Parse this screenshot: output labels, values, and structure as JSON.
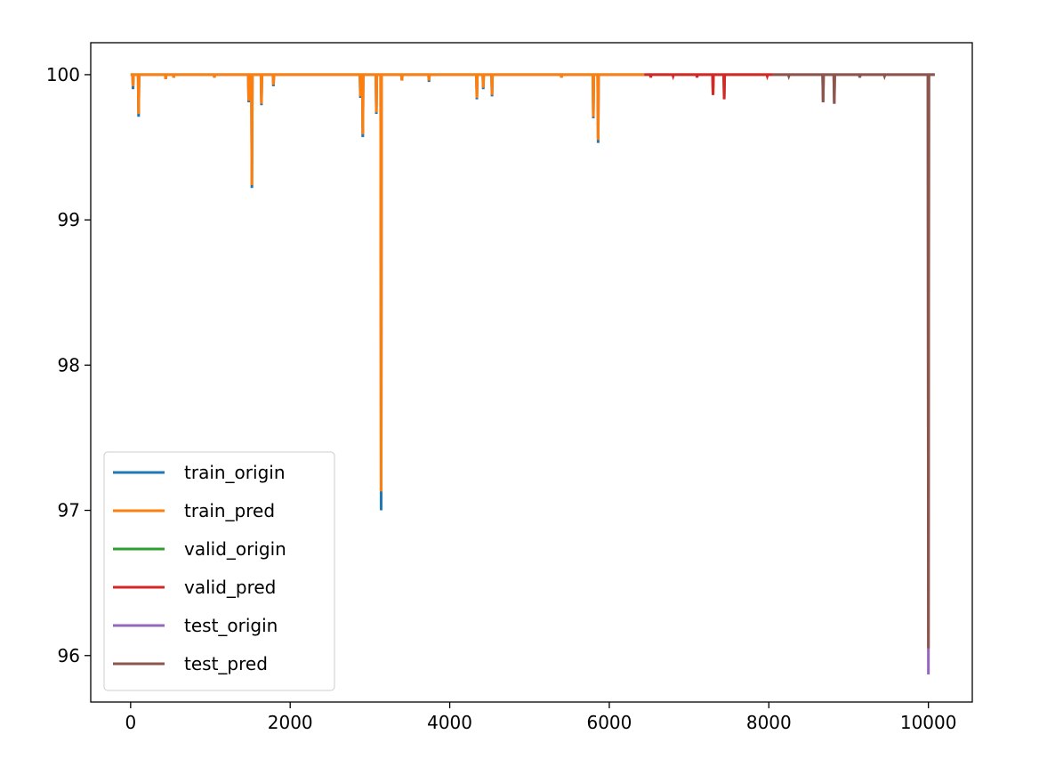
{
  "chart_data": {
    "type": "line",
    "title": "",
    "xlabel": "",
    "ylabel": "",
    "xlim": [
      -500,
      10550
    ],
    "ylim": [
      95.68,
      100.22
    ],
    "xticks": [
      0,
      2000,
      4000,
      6000,
      8000,
      10000
    ],
    "yticks": [
      96,
      97,
      98,
      99,
      100
    ],
    "grid": false,
    "legend": "lower-left",
    "series": [
      {
        "name": "train_origin",
        "color": "#1f77b4",
        "x_range": [
          0,
          6440
        ],
        "baseline": 100,
        "dips": [
          [
            30,
            99.9
          ],
          [
            100,
            99.71
          ],
          [
            440,
            99.97
          ],
          [
            540,
            99.98
          ],
          [
            1050,
            99.98
          ],
          [
            1480,
            99.81
          ],
          [
            1520,
            99.22
          ],
          [
            1640,
            99.79
          ],
          [
            1790,
            99.92
          ],
          [
            2880,
            99.84
          ],
          [
            2910,
            99.57
          ],
          [
            3080,
            99.73
          ],
          [
            3140,
            97.0
          ],
          [
            3400,
            99.96
          ],
          [
            3740,
            99.95
          ],
          [
            4340,
            99.83
          ],
          [
            4420,
            99.9
          ],
          [
            4530,
            99.85
          ],
          [
            5400,
            99.98
          ],
          [
            5800,
            99.7
          ],
          [
            5860,
            99.53
          ]
        ]
      },
      {
        "name": "train_pred",
        "color": "#ff7f0e",
        "x_range": [
          0,
          6440
        ],
        "baseline": 100,
        "dips": [
          [
            30,
            99.92
          ],
          [
            100,
            99.73
          ],
          [
            440,
            99.97
          ],
          [
            540,
            99.98
          ],
          [
            1050,
            99.98
          ],
          [
            1480,
            99.82
          ],
          [
            1520,
            99.24
          ],
          [
            1640,
            99.8
          ],
          [
            1790,
            99.93
          ],
          [
            2880,
            99.85
          ],
          [
            2910,
            99.59
          ],
          [
            3080,
            99.74
          ],
          [
            3140,
            97.13
          ],
          [
            3400,
            99.96
          ],
          [
            3740,
            99.96
          ],
          [
            4340,
            99.84
          ],
          [
            4420,
            99.91
          ],
          [
            4530,
            99.86
          ],
          [
            5400,
            99.98
          ],
          [
            5800,
            99.71
          ],
          [
            5860,
            99.55
          ]
        ]
      },
      {
        "name": "valid_origin",
        "color": "#2ca02c",
        "x_range": [
          6440,
          8050
        ],
        "baseline": 100,
        "dips": [
          [
            7300,
            99.86
          ],
          [
            7440,
            99.84
          ]
        ]
      },
      {
        "name": "valid_pred",
        "color": "#d62728",
        "x_range": [
          6440,
          8050
        ],
        "baseline": 100,
        "dips": [
          [
            6520,
            99.98
          ],
          [
            6800,
            99.99
          ],
          [
            7100,
            99.98
          ],
          [
            7300,
            99.86
          ],
          [
            7440,
            99.83
          ],
          [
            7980,
            99.99
          ]
        ]
      },
      {
        "name": "test_origin",
        "color": "#9467bd",
        "x_range": [
          8050,
          10080
        ],
        "baseline": 100,
        "dips": [
          [
            8680,
            99.81
          ],
          [
            8820,
            99.8
          ],
          [
            9140,
            99.98
          ],
          [
            10000,
            95.87
          ]
        ]
      },
      {
        "name": "test_pred",
        "color": "#8c564b",
        "x_range": [
          8050,
          10080
        ],
        "baseline": 100,
        "dips": [
          [
            8250,
            99.99
          ],
          [
            8680,
            99.81
          ],
          [
            8820,
            99.8
          ],
          [
            9140,
            99.98
          ],
          [
            9450,
            99.99
          ],
          [
            10000,
            96.05
          ]
        ]
      }
    ]
  }
}
